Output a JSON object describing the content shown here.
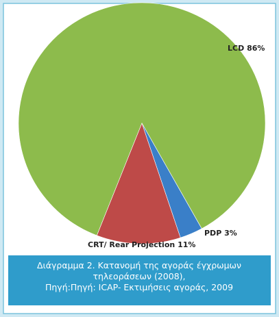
{
  "chart_data": {
    "type": "pie",
    "categories": [
      "LCD",
      "PDP",
      "CRT/ Rear Projection"
    ],
    "values": [
      86,
      3,
      11
    ],
    "value_labels": [
      "86%",
      "3%",
      "11%"
    ],
    "colors": [
      "#8dbb4c",
      "#3a7fc8",
      "#be4a48"
    ],
    "caption": [
      "Διάγραμμα 2. Κατανομή της αγοράς έγχρωμων",
      "τηλεοράσεων (2008),",
      "Πηγή:Πηγή: ICAP- Εκτιμήσεις αγοράς, 2009"
    ]
  }
}
